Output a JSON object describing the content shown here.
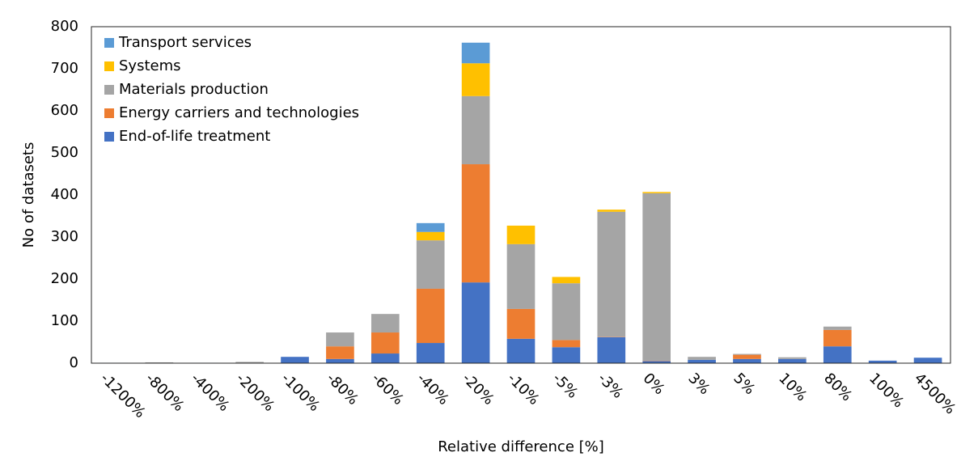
{
  "chart_data": {
    "type": "stacked_bar",
    "categories": [
      "-1200%",
      "-800%",
      "-400%",
      "-200%",
      "-100%",
      "-80%",
      "-60%",
      "-40%",
      "-20%",
      "-10%",
      "-5%",
      "-3%",
      "0%",
      "3%",
      "5%",
      "10%",
      "80%",
      "100%",
      "4500%"
    ],
    "series": [
      {
        "name": "End-of-life treatment",
        "color": "#4472c4",
        "values": [
          1,
          1,
          1,
          1,
          15,
          10,
          23,
          48,
          192,
          58,
          38,
          62,
          5,
          8,
          10,
          10,
          40,
          6,
          13
        ]
      },
      {
        "name": "Energy carriers and technologies",
        "color": "#ed7d31",
        "values": [
          0,
          0,
          0,
          0,
          0,
          30,
          50,
          129,
          281,
          71,
          17,
          1,
          1,
          0,
          10,
          0,
          39,
          0,
          0
        ]
      },
      {
        "name": "Materials production",
        "color": "#a5a5a5",
        "values": [
          0,
          1,
          0,
          2,
          0,
          33,
          44,
          115,
          162,
          154,
          135,
          297,
          398,
          7,
          2,
          4,
          8,
          0,
          0
        ]
      },
      {
        "name": "Systems",
        "color": "#ffc000",
        "values": [
          0,
          0,
          0,
          0,
          0,
          0,
          0,
          20,
          78,
          44,
          15,
          5,
          3,
          0,
          0,
          0,
          0,
          0,
          0
        ]
      },
      {
        "name": "Transport services",
        "color": "#5b9bd5",
        "values": [
          0,
          0,
          0,
          0,
          0,
          0,
          0,
          21,
          49,
          0,
          0,
          0,
          0,
          0,
          0,
          0,
          0,
          0,
          0
        ]
      }
    ],
    "ylim": [
      0,
      800
    ],
    "yticks": [
      0,
      100,
      200,
      300,
      400,
      500,
      600,
      700,
      800
    ],
    "y_label": "No of datasets",
    "x_label": "Relative difference [%]",
    "legend": "top-left",
    "grid": false
  }
}
